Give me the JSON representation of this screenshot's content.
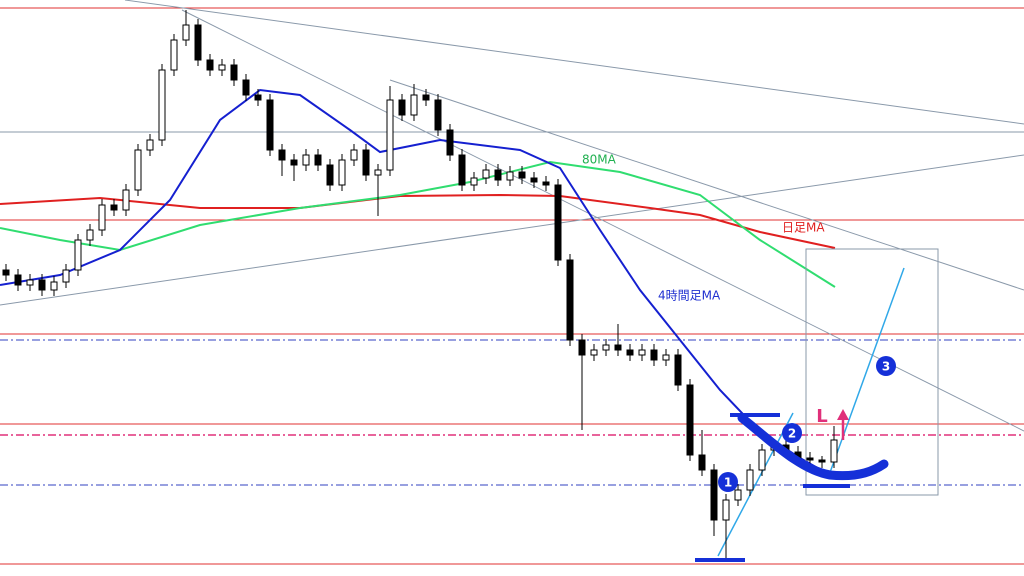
{
  "chart_data": {
    "type": "candlestick",
    "ylim": [
      0,
      576
    ],
    "open": [
      306,
      301,
      291,
      296,
      286,
      294,
      306,
      336,
      346,
      371,
      366,
      386,
      426,
      436,
      506,
      536,
      551,
      516,
      506,
      511,
      496,
      481,
      476,
      426,
      416,
      411,
      421,
      411,
      391,
      416,
      426,
      401,
      406,
      476,
      461,
      481,
      476,
      446,
      421,
      391,
      398,
      406,
      396,
      404,
      398,
      394,
      391,
      316,
      236,
      221,
      226,
      231,
      226,
      221,
      226,
      216,
      221,
      191,
      121,
      106,
      56,
      76,
      86,
      106,
      126,
      131,
      124,
      118,
      116,
      114
    ],
    "high": [
      312,
      307,
      302,
      302,
      300,
      312,
      342,
      352,
      377,
      377,
      392,
      432,
      442,
      512,
      542,
      566,
      557,
      522,
      517,
      517,
      502,
      487,
      482,
      432,
      422,
      427,
      427,
      417,
      422,
      432,
      432,
      412,
      490,
      482,
      492,
      487,
      482,
      452,
      427,
      404,
      412,
      412,
      410,
      410,
      404,
      400,
      397,
      322,
      242,
      232,
      237,
      252,
      232,
      232,
      232,
      227,
      227,
      197,
      146,
      112,
      82,
      92,
      112,
      132,
      137,
      137,
      130,
      124,
      120,
      150
    ],
    "low": [
      295,
      285,
      285,
      280,
      280,
      288,
      300,
      330,
      340,
      360,
      360,
      380,
      420,
      430,
      500,
      530,
      510,
      500,
      500,
      490,
      475,
      470,
      420,
      400,
      395,
      405,
      405,
      385,
      385,
      410,
      395,
      360,
      400,
      455,
      455,
      470,
      440,
      415,
      385,
      385,
      392,
      390,
      390,
      392,
      388,
      385,
      310,
      230,
      146,
      215,
      220,
      220,
      215,
      215,
      210,
      210,
      185,
      115,
      100,
      40,
      16,
      70,
      80,
      100,
      120,
      118,
      112,
      110,
      108,
      108
    ],
    "close": [
      301,
      291,
      296,
      286,
      294,
      306,
      336,
      346,
      371,
      366,
      386,
      426,
      436,
      506,
      536,
      551,
      516,
      506,
      511,
      496,
      481,
      476,
      426,
      416,
      411,
      421,
      411,
      391,
      416,
      426,
      401,
      406,
      476,
      461,
      481,
      476,
      446,
      421,
      391,
      398,
      406,
      396,
      404,
      398,
      394,
      391,
      316,
      236,
      221,
      226,
      231,
      226,
      221,
      226,
      216,
      221,
      191,
      121,
      106,
      56,
      76,
      86,
      106,
      126,
      131,
      124,
      118,
      116,
      114,
      136
    ],
    "up_color": "#ffffff",
    "down_color": "#000000",
    "labels": {
      "ma80": "80MA",
      "daily_ma": "日足MA",
      "h4_ma": "4時間足MA",
      "entry": "L"
    },
    "markers": [
      "1",
      "2",
      "3"
    ]
  }
}
